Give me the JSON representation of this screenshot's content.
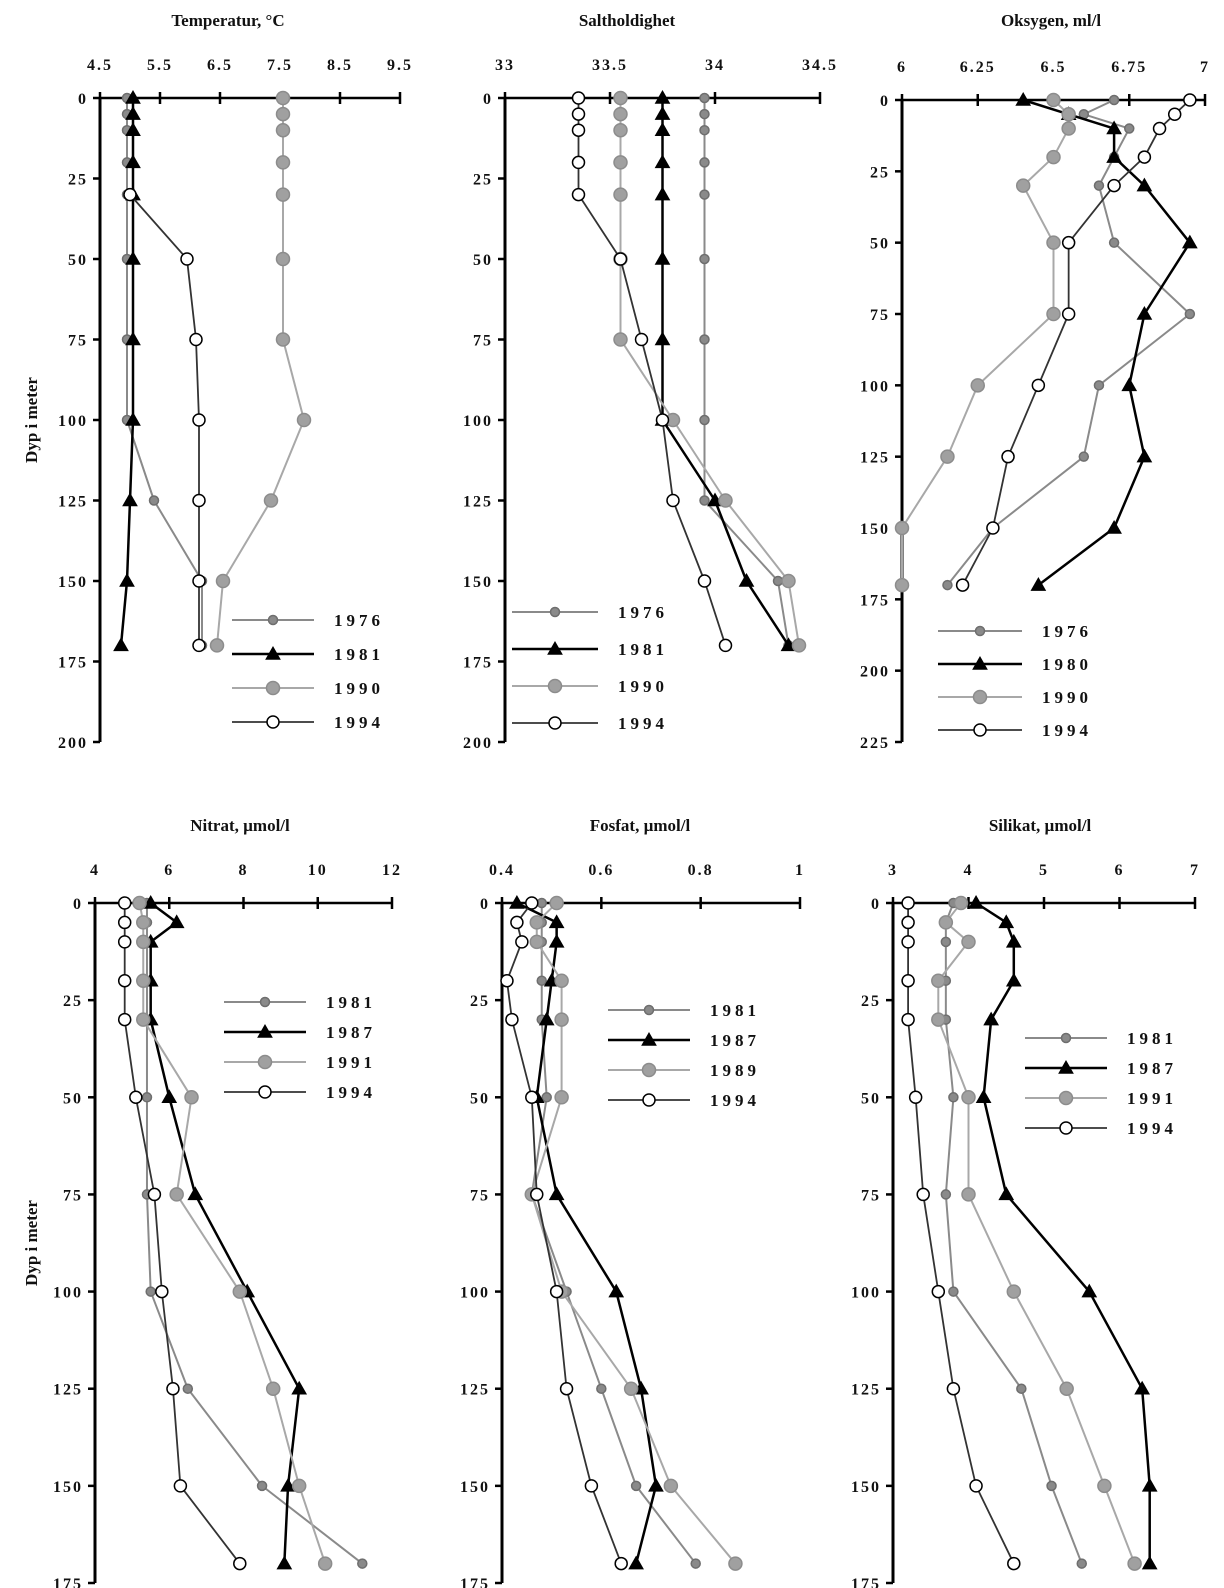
{
  "y_axis_label": "Dyp i meter",
  "chart_data": [
    {
      "type": "line",
      "title": "Temperatur, °C",
      "xlabel": "Temperatur, °C",
      "ylabel": "Dyp i meter",
      "x_ticks": [
        "4.5",
        "5.5",
        "6.5",
        "7.5",
        "8.5",
        "9.5"
      ],
      "xlim": [
        4.5,
        9.5
      ],
      "y_ticks": [
        "0",
        "25",
        "50",
        "75",
        "100",
        "125",
        "150",
        "175",
        "200"
      ],
      "ylim": [
        0,
        200
      ],
      "legend_position": "lower-right",
      "series": [
        {
          "name": "1976",
          "style": "small-grey",
          "depth": [
            0,
            5,
            10,
            20,
            30,
            50,
            75,
            100,
            125,
            150,
            170
          ],
          "values": [
            4.95,
            4.95,
            4.95,
            4.95,
            4.95,
            4.95,
            4.95,
            4.95,
            5.4,
            6.2,
            6.2
          ]
        },
        {
          "name": "1981",
          "style": "triangle",
          "depth": [
            0,
            5,
            10,
            20,
            30,
            50,
            75,
            100,
            125,
            150,
            170
          ],
          "values": [
            5.05,
            5.05,
            5.05,
            5.05,
            5.05,
            5.05,
            5.05,
            5.05,
            5.0,
            4.95,
            4.85
          ]
        },
        {
          "name": "1990",
          "style": "grey",
          "depth": [
            0,
            5,
            10,
            20,
            30,
            50,
            75,
            100,
            125,
            150,
            170
          ],
          "values": [
            7.55,
            7.55,
            7.55,
            7.55,
            7.55,
            7.55,
            7.55,
            7.9,
            7.35,
            6.55,
            6.45
          ]
        },
        {
          "name": "1994",
          "style": "open-circle",
          "depth": [
            30,
            50,
            75,
            100,
            125,
            150,
            170
          ],
          "values": [
            5.0,
            5.95,
            6.1,
            6.15,
            6.15,
            6.15,
            6.15
          ]
        }
      ]
    },
    {
      "type": "line",
      "title": "Saltholdighet",
      "xlabel": "Saltholdighet",
      "ylabel": "",
      "x_ticks": [
        "33",
        "33.5",
        "34",
        "34.5"
      ],
      "xlim": [
        33,
        34.5
      ],
      "y_ticks": [
        "0",
        "25",
        "50",
        "75",
        "100",
        "125",
        "150",
        "175",
        "200"
      ],
      "ylim": [
        0,
        200
      ],
      "legend_position": "lower-left",
      "series": [
        {
          "name": "1976",
          "style": "small-grey",
          "depth": [
            0,
            5,
            10,
            20,
            30,
            50,
            75,
            100,
            125,
            150,
            170
          ],
          "values": [
            33.95,
            33.95,
            33.95,
            33.95,
            33.95,
            33.95,
            33.95,
            33.95,
            33.95,
            34.3,
            34.35
          ]
        },
        {
          "name": "1981",
          "style": "triangle",
          "depth": [
            0,
            5,
            10,
            20,
            30,
            50,
            75,
            100,
            125,
            150,
            170
          ],
          "values": [
            33.75,
            33.75,
            33.75,
            33.75,
            33.75,
            33.75,
            33.75,
            33.75,
            34.0,
            34.15,
            34.35
          ]
        },
        {
          "name": "1990",
          "style": "grey",
          "depth": [
            0,
            5,
            10,
            20,
            30,
            50,
            75,
            100,
            125,
            150,
            170
          ],
          "values": [
            33.55,
            33.55,
            33.55,
            33.55,
            33.55,
            33.55,
            33.55,
            33.8,
            34.05,
            34.35,
            34.4
          ]
        },
        {
          "name": "1994",
          "style": "open-circle",
          "depth": [
            0,
            5,
            10,
            20,
            30,
            50,
            75,
            100,
            125,
            150,
            170
          ],
          "values": [
            33.35,
            33.35,
            33.35,
            33.35,
            33.35,
            33.55,
            33.65,
            33.75,
            33.8,
            33.95,
            34.05
          ]
        }
      ]
    },
    {
      "type": "line",
      "title": "Oksygen, ml/l",
      "xlabel": "Oksygen, ml/l",
      "ylabel": "",
      "x_ticks": [
        "6",
        "6.25",
        "6.5",
        "6.75",
        "7"
      ],
      "xlim": [
        6,
        7
      ],
      "y_ticks": [
        "0",
        "25",
        "50",
        "75",
        "100",
        "125",
        "150",
        "175",
        "200",
        "225"
      ],
      "ylim": [
        0,
        225
      ],
      "legend_position": "lower-left",
      "series": [
        {
          "name": "1976",
          "style": "small-grey",
          "depth": [
            0,
            5,
            10,
            20,
            30,
            50,
            75,
            100,
            125,
            150,
            170
          ],
          "values": [
            6.7,
            6.6,
            6.75,
            6.7,
            6.65,
            6.7,
            6.95,
            6.65,
            6.6,
            6.3,
            6.15
          ]
        },
        {
          "name": "1980",
          "style": "triangle",
          "depth": [
            0,
            5,
            10,
            20,
            30,
            50,
            75,
            100,
            125,
            150,
            170
          ],
          "values": [
            6.4,
            6.55,
            6.7,
            6.7,
            6.8,
            6.95,
            6.8,
            6.75,
            6.8,
            6.7,
            6.45
          ]
        },
        {
          "name": "1990",
          "style": "grey",
          "depth": [
            0,
            5,
            10,
            20,
            30,
            50,
            75,
            100,
            125,
            150,
            170
          ],
          "values": [
            6.5,
            6.55,
            6.55,
            6.5,
            6.4,
            6.5,
            6.5,
            6.25,
            6.15,
            6.0,
            6.0
          ]
        },
        {
          "name": "1994",
          "style": "open-circle",
          "depth": [
            0,
            5,
            10,
            20,
            30,
            50,
            75,
            100,
            125,
            150,
            170
          ],
          "values": [
            6.95,
            6.9,
            6.85,
            6.8,
            6.7,
            6.55,
            6.55,
            6.45,
            6.35,
            6.3,
            6.2
          ]
        }
      ]
    },
    {
      "type": "line",
      "title": "Nitrat, µmol/l",
      "xlabel": "Nitrat, µmol/l",
      "ylabel": "Dyp i meter",
      "x_ticks": [
        "4",
        "6",
        "8",
        "10",
        "12"
      ],
      "xlim": [
        4,
        12
      ],
      "y_ticks": [
        "0",
        "25",
        "50",
        "75",
        "100",
        "125",
        "150",
        "175"
      ],
      "ylim": [
        0,
        175
      ],
      "legend_position": "upper-right",
      "series": [
        {
          "name": "1981",
          "style": "small-grey",
          "depth": [
            0,
            5,
            10,
            20,
            30,
            50,
            75,
            100,
            125,
            150,
            170
          ],
          "values": [
            5.4,
            5.4,
            5.4,
            5.4,
            5.4,
            5.4,
            5.4,
            5.5,
            6.5,
            8.5,
            11.2
          ]
        },
        {
          "name": "1987",
          "style": "triangle",
          "depth": [
            0,
            5,
            10,
            20,
            30,
            50,
            75,
            100,
            125,
            150,
            170
          ],
          "values": [
            5.5,
            6.2,
            5.5,
            5.5,
            5.5,
            6.0,
            6.7,
            8.1,
            9.5,
            9.2,
            9.1
          ]
        },
        {
          "name": "1991",
          "style": "grey",
          "depth": [
            0,
            5,
            10,
            20,
            30,
            50,
            75,
            100,
            125,
            150,
            170
          ],
          "values": [
            5.2,
            5.3,
            5.3,
            5.3,
            5.3,
            6.6,
            6.2,
            7.9,
            8.8,
            9.5,
            10.2
          ]
        },
        {
          "name": "1994",
          "style": "open-circle",
          "depth": [
            0,
            5,
            10,
            20,
            30,
            50,
            75,
            100,
            125,
            150,
            170
          ],
          "values": [
            4.8,
            4.8,
            4.8,
            4.8,
            4.8,
            5.1,
            5.6,
            5.8,
            6.1,
            6.3,
            7.9
          ]
        }
      ]
    },
    {
      "type": "line",
      "title": "Fosfat, µmol/l",
      "xlabel": "Fosfat, µmol/l",
      "ylabel": "",
      "x_ticks": [
        "0.4",
        "0.6",
        "0.8",
        "1"
      ],
      "xlim": [
        0.4,
        1
      ],
      "y_ticks": [
        "0",
        "25",
        "50",
        "75",
        "100",
        "125",
        "150",
        "175"
      ],
      "ylim": [
        0,
        175
      ],
      "legend_position": "upper-right",
      "series": [
        {
          "name": "1981",
          "style": "small-grey",
          "depth": [
            0,
            5,
            10,
            20,
            30,
            50,
            75,
            100,
            125,
            150,
            170
          ],
          "values": [
            0.48,
            0.48,
            0.48,
            0.48,
            0.48,
            0.49,
            0.46,
            0.53,
            0.6,
            0.67,
            0.79
          ]
        },
        {
          "name": "1987",
          "style": "triangle",
          "depth": [
            0,
            5,
            10,
            20,
            30,
            50,
            75,
            100,
            125,
            150,
            170
          ],
          "values": [
            0.43,
            0.51,
            0.51,
            0.5,
            0.49,
            0.47,
            0.51,
            0.63,
            0.68,
            0.71,
            0.67
          ]
        },
        {
          "name": "1989",
          "style": "grey",
          "depth": [
            0,
            5,
            10,
            20,
            30,
            50,
            75,
            100,
            125,
            150,
            170
          ],
          "values": [
            0.51,
            0.47,
            0.47,
            0.52,
            0.52,
            0.52,
            0.46,
            0.52,
            0.66,
            0.74,
            0.87
          ]
        },
        {
          "name": "1994",
          "style": "open-circle",
          "depth": [
            0,
            5,
            10,
            20,
            30,
            50,
            75,
            100,
            125,
            150,
            170
          ],
          "values": [
            0.46,
            0.43,
            0.44,
            0.41,
            0.42,
            0.46,
            0.47,
            0.51,
            0.53,
            0.58,
            0.64
          ]
        }
      ]
    },
    {
      "type": "line",
      "title": "Silikat, µmol/l",
      "xlabel": "Silikat, µmol/l",
      "ylabel": "",
      "x_ticks": [
        "3",
        "4",
        "5",
        "6",
        "7"
      ],
      "xlim": [
        3,
        7
      ],
      "y_ticks": [
        "0",
        "25",
        "50",
        "75",
        "100",
        "125",
        "150",
        "175"
      ],
      "ylim": [
        0,
        175
      ],
      "legend_position": "upper-right",
      "series": [
        {
          "name": "1981",
          "style": "small-grey",
          "depth": [
            0,
            5,
            10,
            20,
            30,
            50,
            75,
            100,
            125,
            150,
            170
          ],
          "values": [
            3.8,
            3.7,
            3.7,
            3.7,
            3.7,
            3.8,
            3.7,
            3.8,
            4.7,
            5.1,
            5.5
          ]
        },
        {
          "name": "1987",
          "style": "triangle",
          "depth": [
            0,
            5,
            10,
            20,
            30,
            50,
            75,
            100,
            125,
            150,
            170
          ],
          "values": [
            4.1,
            4.5,
            4.6,
            4.6,
            4.3,
            4.2,
            4.5,
            5.6,
            6.3,
            6.4,
            6.4
          ]
        },
        {
          "name": "1991",
          "style": "grey",
          "depth": [
            0,
            5,
            10,
            20,
            30,
            50,
            75,
            100,
            125,
            150,
            170
          ],
          "values": [
            3.9,
            3.7,
            4.0,
            3.6,
            3.6,
            4.0,
            4.0,
            4.6,
            5.3,
            5.8,
            6.2
          ]
        },
        {
          "name": "1994",
          "style": "open-circle",
          "depth": [
            0,
            5,
            10,
            20,
            30,
            50,
            75,
            100,
            125,
            150,
            170
          ],
          "values": [
            3.2,
            3.2,
            3.2,
            3.2,
            3.2,
            3.3,
            3.4,
            3.6,
            3.8,
            4.1,
            4.6
          ]
        }
      ]
    }
  ]
}
